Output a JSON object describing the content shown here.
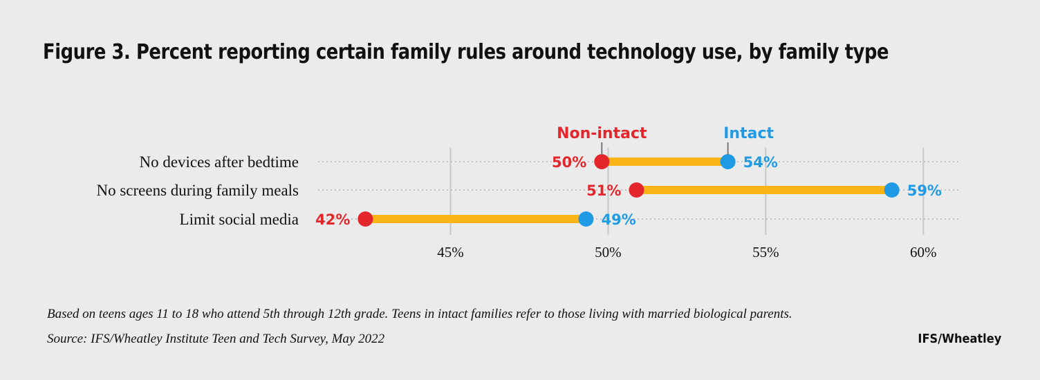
{
  "title": "Figure 3. Percent reporting certain family rules around technology use, by family type",
  "footnote": "Based on teens ages 11 to 18 who attend 5th through 12th grade. Teens in intact families refer to those living with married biological parents.",
  "source": "Source: IFS/Wheatley Institute Teen and Tech Survey, May 2022",
  "brand": "IFS/Wheatley",
  "colors": {
    "non_intact": "#e3262b",
    "intact": "#1f9be6",
    "bar": "#fbb416",
    "grid": "#c8c8c8",
    "background": "#ebebeb"
  },
  "chart_data": {
    "type": "dumbbell",
    "xlim": [
      40.8,
      61.2
    ],
    "xticks": [
      45,
      50,
      55,
      60
    ],
    "xtick_labels": [
      "45%",
      "50%",
      "55%",
      "60%"
    ],
    "categories": [
      "No devices after bedtime",
      "No screens during family meals",
      "Limit social media"
    ],
    "series": [
      {
        "name": "Non-intact",
        "values": [
          49.8,
          50.9,
          42.3
        ],
        "labels": [
          "50%",
          "51%",
          "42%"
        ]
      },
      {
        "name": "Intact",
        "values": [
          53.8,
          59.0,
          49.3
        ],
        "labels": [
          "54%",
          "59%",
          "49%"
        ]
      }
    ],
    "legend": "annotated above first row"
  }
}
